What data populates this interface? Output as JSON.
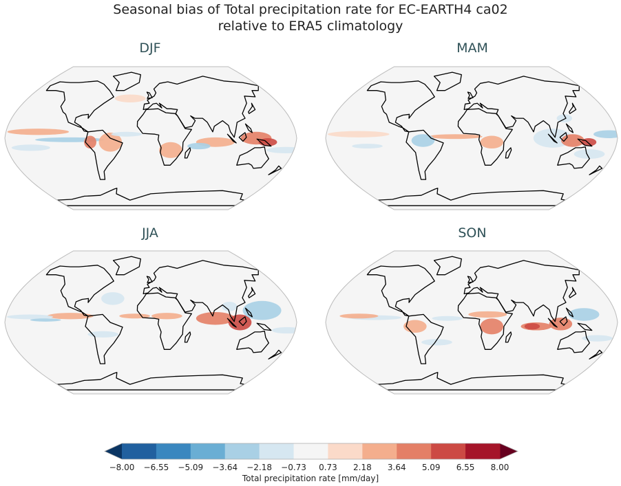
{
  "title": {
    "line1": "Seasonal bias of Total precipitation rate for EC-EARTH4 ca02",
    "line2": "relative to ERA5 climatology"
  },
  "panels": [
    {
      "season": "DJF"
    },
    {
      "season": "MAM"
    },
    {
      "season": "JJA"
    },
    {
      "season": "SON"
    }
  ],
  "colorbar": {
    "label": "Total precipitation rate [mm/day]",
    "ticks": [
      "−8.00",
      "−6.55",
      "−5.09",
      "−3.64",
      "−2.18",
      "−0.73",
      "0.73",
      "2.18",
      "3.64",
      "5.09",
      "6.55",
      "8.00"
    ],
    "colors": [
      "#21609f",
      "#3a87bf",
      "#6aaed4",
      "#a9d0e5",
      "#d6e7f1",
      "#f5f5f5",
      "#fbdac9",
      "#f4ae8d",
      "#e47f66",
      "#cc4a44",
      "#a51529"
    ],
    "under_color": "#0b3563",
    "over_color": "#67001f",
    "extend": "both"
  }
}
